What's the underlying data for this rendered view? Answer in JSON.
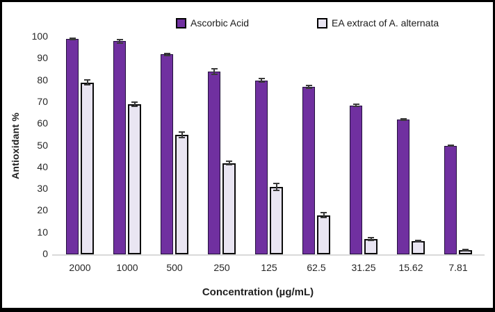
{
  "legend": [
    {
      "label": "Ascorbic Acid",
      "swatch_fill": "#7030A0",
      "swatch_border": "#000000"
    },
    {
      "label": "EA extract of A. alternata",
      "swatch_fill": "#E9E5F2",
      "swatch_border": "#000000"
    }
  ],
  "chart_data": {
    "type": "bar",
    "categories": [
      "2000",
      "1000",
      "500",
      "250",
      "125",
      "62.5",
      "31.25",
      "15.62",
      "7.81"
    ],
    "series": [
      {
        "name": "Ascorbic Acid",
        "values": [
          99,
          98,
          92,
          84,
          80,
          77,
          68.5,
          62,
          50
        ],
        "errors": [
          0.7,
          1.2,
          0.8,
          1.5,
          1.2,
          1.0,
          0.8,
          0.5,
          0.4
        ],
        "fill": "#7030A0",
        "border": "#21103A"
      },
      {
        "name": "EA extract of A. alternata",
        "values": [
          79,
          69,
          55,
          42,
          31,
          18,
          7,
          6,
          2
        ],
        "errors": [
          1.5,
          1.2,
          1.5,
          1.0,
          1.8,
          1.5,
          1.0,
          0.7,
          0.6
        ],
        "fill": "#E9E5F2",
        "border": "#0B0B0B"
      }
    ],
    "title": "",
    "xlabel": "Concentration (µg/mL)",
    "ylabel": "Antioxidant %",
    "ylim": [
      0,
      100
    ],
    "ytick_step": 10,
    "grid": false,
    "legend_position": "top-center",
    "error_bars": true,
    "axis_line_color": "#D9D9D9",
    "error_bar_color": "#3A3A3A"
  }
}
